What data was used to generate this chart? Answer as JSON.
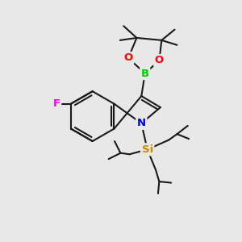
{
  "bg_color": "#e8e8e8",
  "bond_color": "#1a1a1a",
  "bond_width": 1.5,
  "atom_colors": {
    "B": "#00cc00",
    "O": "#ff0000",
    "N": "#0000ee",
    "F": "#ee00ee",
    "Si": "#cc8800"
  },
  "font_size": 9.5
}
